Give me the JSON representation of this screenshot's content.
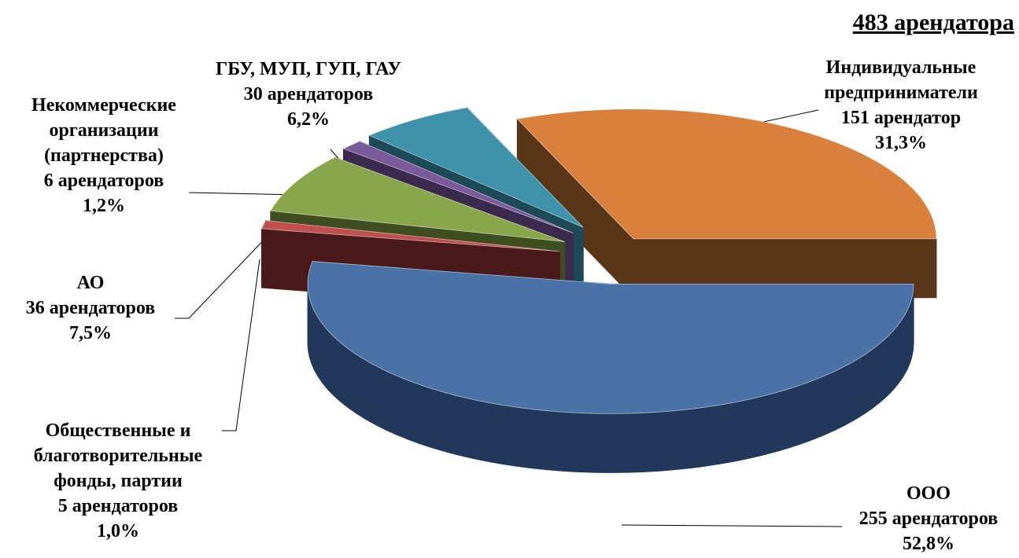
{
  "chart_data": {
    "type": "pie3d",
    "title": "483 арендатора",
    "categories": [
      "Индивидуальные предприниматели",
      "ООО",
      "Общественные и благотворительные фонды, партии",
      "АО",
      "Некоммерческие организации (партнерства)",
      "ГБУ, МУП, ГУП, ГАУ"
    ],
    "values": [
      151,
      255,
      5,
      36,
      6,
      30
    ],
    "value_labels": [
      "151 арендатор",
      "255 арендаторов",
      "5 арендаторов",
      "36 арендаторов",
      "6 арендаторов",
      "30 арендаторов"
    ],
    "percents": [
      31.3,
      52.8,
      1.0,
      7.5,
      1.2,
      6.2
    ],
    "percent_labels": [
      "31,3%",
      "52,8%",
      "1,0%",
      "7,5%",
      "1,2%",
      "6,2%"
    ],
    "colors": [
      "#d9803c",
      "#4a72a6",
      "#c0504d",
      "#8aa64a",
      "#7a5a9a",
      "#3e93aa"
    ],
    "side_colors": [
      "#5a3618",
      "#22385a",
      "#4a1a1a",
      "#3e4e20",
      "#3a2a4e",
      "#1c4a56"
    ]
  }
}
